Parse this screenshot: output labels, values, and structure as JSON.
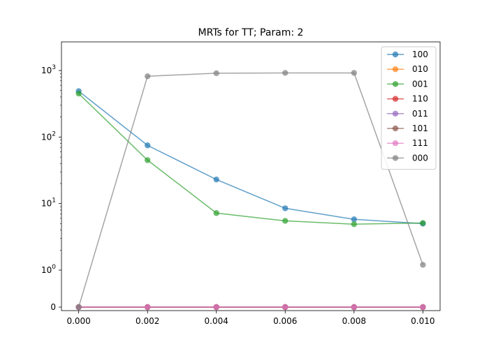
{
  "chart_data": {
    "type": "line",
    "title": "MRTs for TT; Param: 2",
    "xlabel": "",
    "ylabel": "",
    "x": [
      0.0,
      0.002,
      0.004,
      0.006,
      0.008,
      0.01
    ],
    "x_tick_labels": [
      "0.000",
      "0.002",
      "0.004",
      "0.006",
      "0.008",
      "0.010"
    ],
    "xlim": [
      -0.0005,
      0.0105
    ],
    "y_scale": "symlog",
    "y_tick_labels": [
      {
        "value": 0,
        "label": "0"
      },
      {
        "value": 1,
        "label": "10^0"
      },
      {
        "value": 10,
        "label": "10^1"
      },
      {
        "value": 100,
        "label": "10^2"
      },
      {
        "value": 1000,
        "label": "10^3"
      }
    ],
    "grid": false,
    "legend_position": "top-right",
    "series": [
      {
        "name": "100",
        "color": "#1f77b4",
        "values": [
          490,
          75,
          23,
          8.5,
          5.8,
          5.0
        ]
      },
      {
        "name": "010",
        "color": "#ff7f0e",
        "values": [
          0,
          0,
          0,
          0,
          0,
          0
        ]
      },
      {
        "name": "001",
        "color": "#2ca02c",
        "values": [
          450,
          45,
          7.2,
          5.5,
          4.9,
          5.1
        ]
      },
      {
        "name": "110",
        "color": "#d62728",
        "values": [
          0,
          0,
          0,
          0,
          0,
          0
        ]
      },
      {
        "name": "011",
        "color": "#9467bd",
        "values": [
          0,
          0,
          0,
          0,
          0,
          0
        ]
      },
      {
        "name": "101",
        "color": "#8c564b",
        "values": [
          0,
          0,
          0,
          0,
          0,
          0
        ]
      },
      {
        "name": "111",
        "color": "#e377c2",
        "values": [
          0,
          0,
          0,
          0,
          0,
          0
        ]
      },
      {
        "name": "000",
        "color": "#7f7f7f",
        "values": [
          0,
          820,
          910,
          920,
          920,
          1.2
        ]
      }
    ]
  }
}
